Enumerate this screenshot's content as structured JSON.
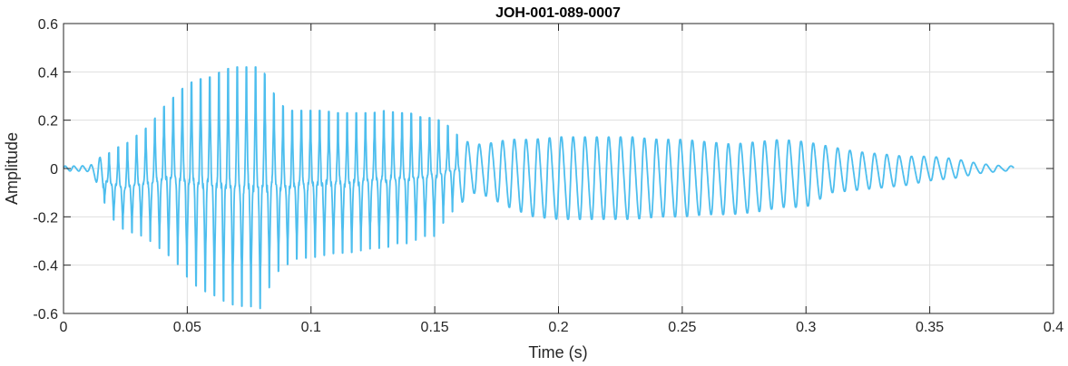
{
  "chart_data": {
    "type": "line",
    "title": "JOH-001-089-0007",
    "xlabel": "Time (s)",
    "ylabel": "Amplitude",
    "xlim": [
      0,
      0.4
    ],
    "ylim": [
      -0.6,
      0.6
    ],
    "xticks": [
      0,
      0.05,
      0.1,
      0.15,
      0.2,
      0.25,
      0.3,
      0.35,
      0.4
    ],
    "xtick_labels": [
      "0",
      "0.05",
      "0.1",
      "0.15",
      "0.2",
      "0.25",
      "0.3",
      "0.35",
      "0.4"
    ],
    "yticks": [
      0.6,
      0.4,
      0.2,
      0,
      -0.2,
      -0.4,
      -0.6
    ],
    "ytick_labels": [
      "0.6",
      "0.4",
      "0.2",
      "0",
      "-0.2",
      "-0.4",
      "-0.6"
    ],
    "grid": true,
    "line_color": "#4DBEEE",
    "series": [
      {
        "x": [
          0,
          0.005,
          0.01,
          0.013,
          0.015,
          0.018,
          0.02,
          0.025,
          0.03,
          0.035,
          0.04,
          0.045,
          0.05,
          0.055,
          0.06,
          0.065,
          0.07,
          0.075,
          0.08,
          0.085,
          0.09,
          0.095,
          0.1,
          0.105,
          0.11,
          0.115,
          0.12,
          0.125,
          0.13,
          0.135,
          0.14,
          0.145,
          0.15,
          0.155,
          0.16,
          0.165,
          0.17,
          0.18,
          0.19,
          0.2,
          0.21,
          0.22,
          0.23,
          0.24,
          0.25,
          0.26,
          0.27,
          0.28,
          0.29,
          0.3,
          0.31,
          0.32,
          0.33,
          0.34,
          0.35,
          0.36,
          0.37,
          0.38,
          0.384
        ],
        "upper": [
          0.01,
          0.01,
          0.012,
          0.02,
          0.05,
          0.06,
          0.08,
          0.1,
          0.14,
          0.18,
          0.25,
          0.3,
          0.35,
          0.37,
          0.38,
          0.41,
          0.42,
          0.42,
          0.42,
          0.31,
          0.24,
          0.24,
          0.24,
          0.24,
          0.23,
          0.23,
          0.23,
          0.23,
          0.24,
          0.23,
          0.23,
          0.21,
          0.21,
          0.18,
          0.13,
          0.1,
          0.1,
          0.12,
          0.12,
          0.13,
          0.13,
          0.13,
          0.13,
          0.12,
          0.12,
          0.11,
          0.1,
          0.11,
          0.12,
          0.11,
          0.09,
          0.07,
          0.06,
          0.05,
          0.05,
          0.04,
          0.02,
          0.01,
          0.01
        ],
        "lower": [
          -0.01,
          -0.01,
          -0.012,
          -0.05,
          -0.1,
          -0.18,
          -0.21,
          -0.26,
          -0.27,
          -0.3,
          -0.34,
          -0.38,
          -0.45,
          -0.5,
          -0.52,
          -0.55,
          -0.57,
          -0.57,
          -0.58,
          -0.44,
          -0.4,
          -0.37,
          -0.37,
          -0.36,
          -0.35,
          -0.35,
          -0.34,
          -0.33,
          -0.33,
          -0.31,
          -0.31,
          -0.28,
          -0.28,
          -0.2,
          -0.15,
          -0.1,
          -0.11,
          -0.16,
          -0.2,
          -0.21,
          -0.21,
          -0.21,
          -0.21,
          -0.2,
          -0.2,
          -0.19,
          -0.19,
          -0.18,
          -0.16,
          -0.16,
          -0.1,
          -0.09,
          -0.08,
          -0.07,
          -0.05,
          -0.04,
          -0.02,
          -0.01,
          -0.01
        ]
      }
    ]
  }
}
